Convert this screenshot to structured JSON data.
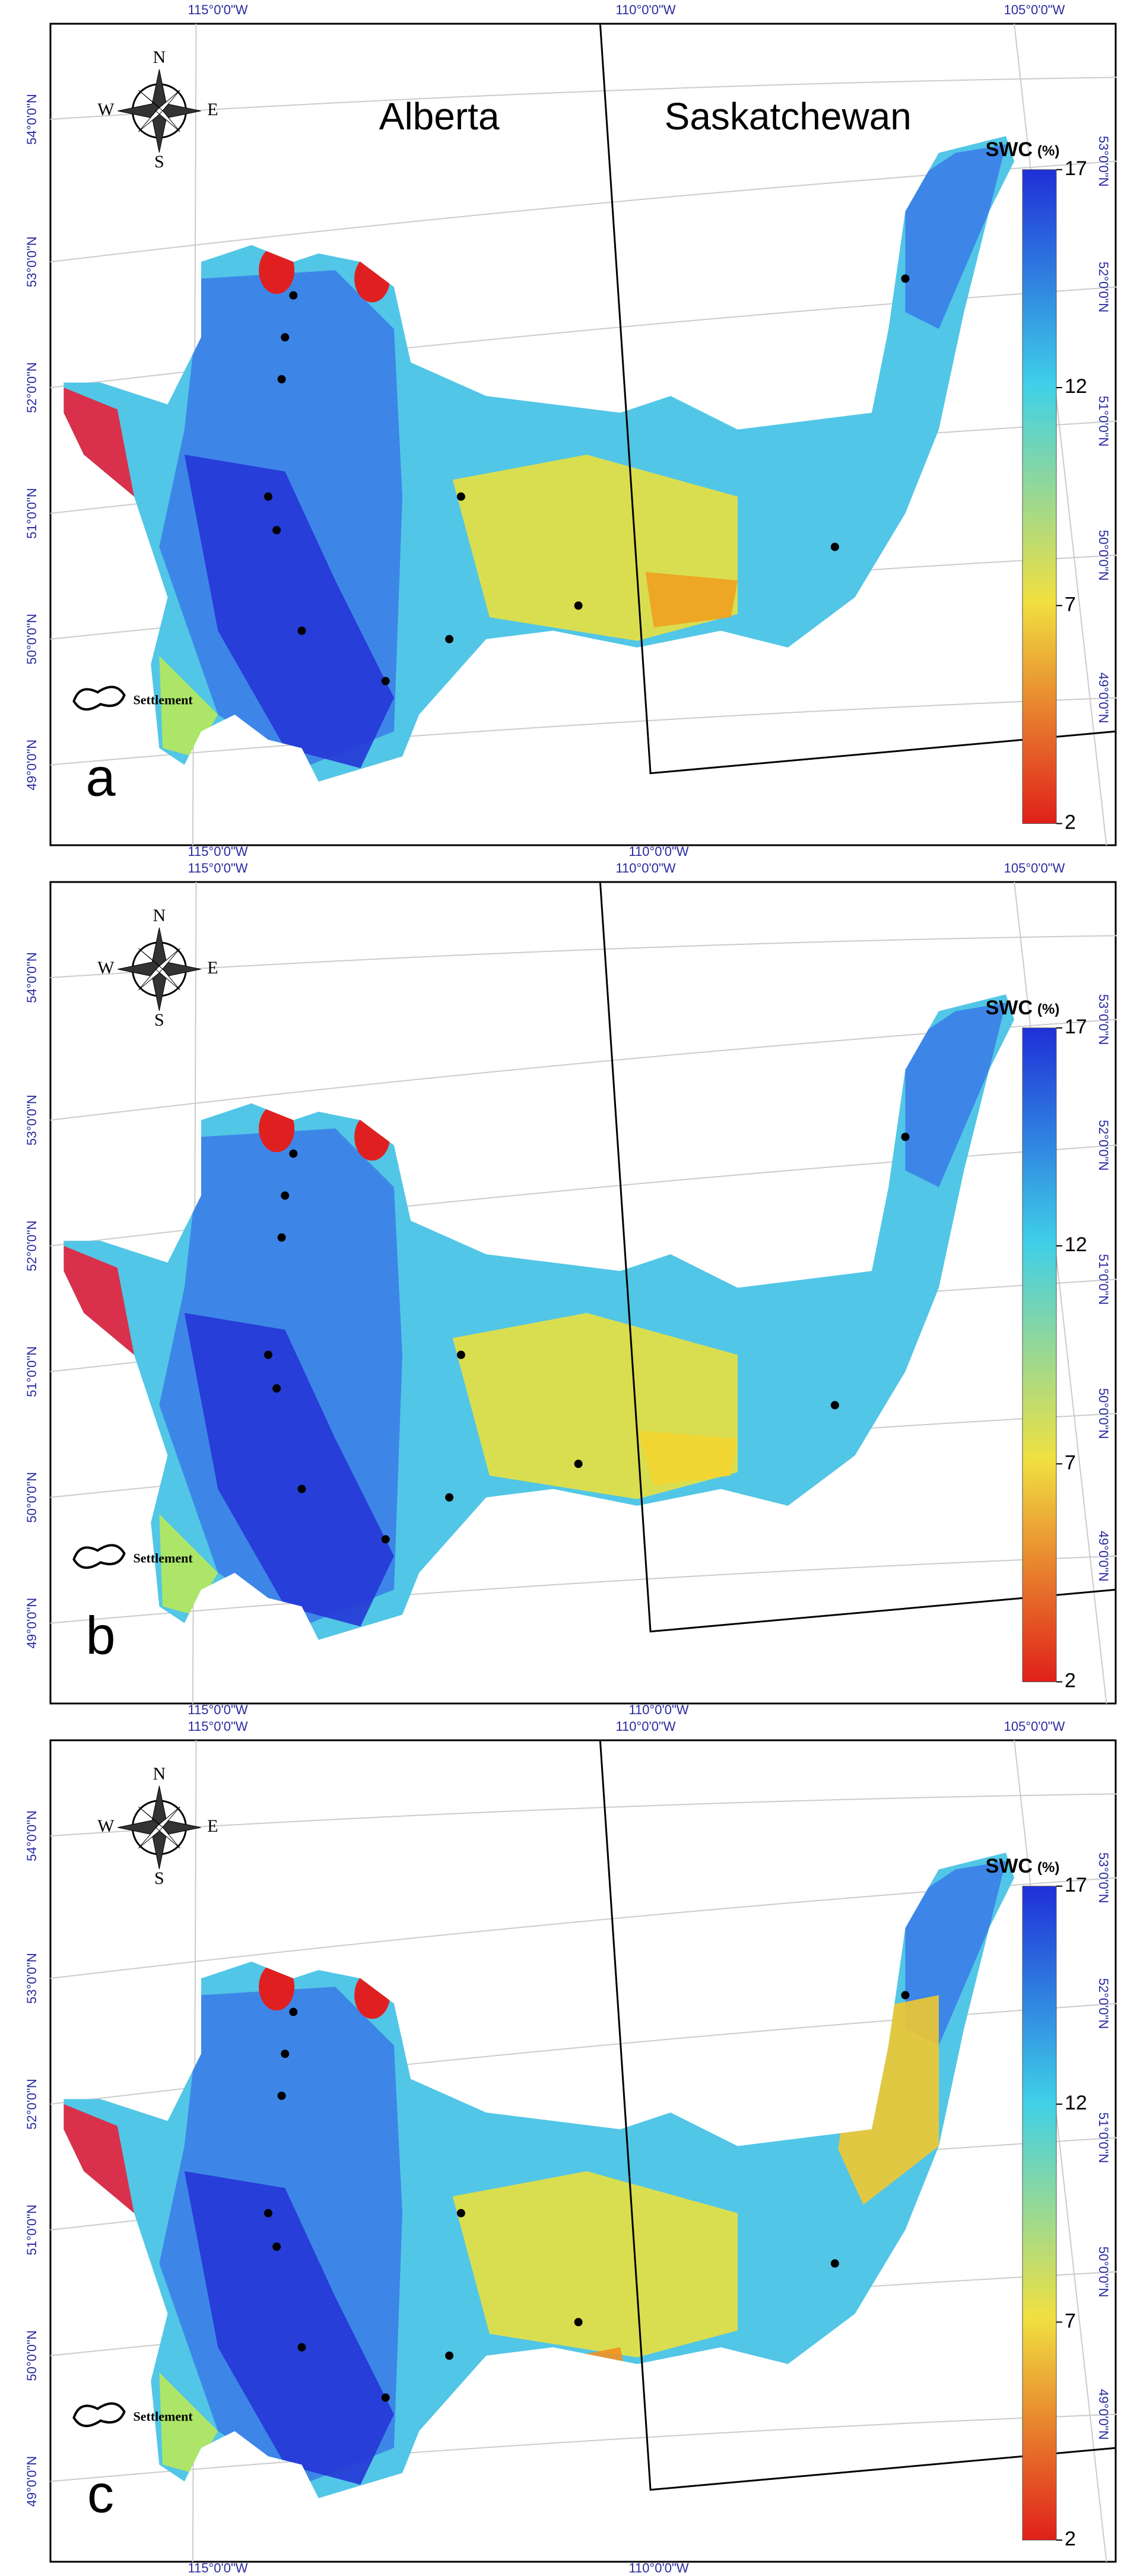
{
  "panels": [
    {
      "label": "a",
      "province_labels": [
        "Alberta",
        "Saskatchewan"
      ]
    },
    {
      "label": "b"
    },
    {
      "label": "c"
    }
  ],
  "lon_top": [
    "115°0'0\"W",
    "110°0'0\"W",
    "105°0'0\"W"
  ],
  "lon_bottom": [
    "115°0'0\"W",
    "110°0'0\"W"
  ],
  "lat_left": [
    "54°0'0\"N",
    "53°0'0\"N",
    "52°0'0\"N",
    "51°0'0\"N",
    "50°0'0\"N",
    "49°0'0\"N"
  ],
  "lat_right": [
    "53°0'0\"N",
    "52°0'0\"N",
    "51°0'0\"N",
    "50°0'0\"N",
    "49°0'0\"N"
  ],
  "compass": {
    "n": "N",
    "s": "S",
    "e": "E",
    "w": "W"
  },
  "settlement_label": "Settlement",
  "legend": {
    "title": "SWC",
    "unit": "(%)",
    "range": [
      2,
      17
    ],
    "ticks": [
      2,
      7,
      12,
      17
    ]
  }
}
